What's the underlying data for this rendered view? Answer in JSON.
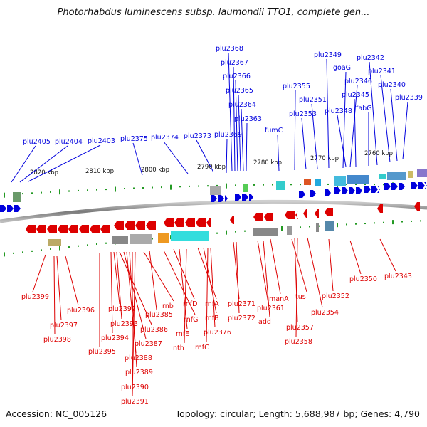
{
  "title": "Photorhabdus luminescens subsp. laumondii TTO1, complete gen...",
  "footer": {
    "accession": "Accession: NC_005126",
    "summary": "Topology: circular; Length: 5,688,987 bp; Genes: 4,790"
  },
  "scale_labels": [
    "2820 kbp",
    "2810 kbp",
    "2800 kbp",
    "2790 kbp",
    "2780 kbp",
    "2770 kbp",
    "2760 kbp"
  ],
  "top_genes": [
    "plu2405",
    "plu2404",
    "plu2403",
    "plu2375",
    "plu2374",
    "plu2373",
    "plu2369",
    "plu2368",
    "plu2367",
    "plu2366",
    "plu2365",
    "plu2364",
    "plu2363",
    "fumC",
    "plu2355",
    "plu2353",
    "plu2351",
    "plu2349",
    "goaG",
    "plu2346",
    "plu2348",
    "plu2345",
    "fabG",
    "plu2342",
    "plu2341",
    "plu2340",
    "plu2339"
  ],
  "bottom_genes": [
    "plu2399",
    "plu2397",
    "plu2398",
    "plu2396",
    "plu2395",
    "plu2394",
    "plu2392",
    "plu2393",
    "plu2386",
    "plu2387",
    "plu2388",
    "plu2389",
    "plu2390",
    "plu2391",
    "rnb",
    "plu2385",
    "rnfG",
    "rnfD",
    "rnfE",
    "nth",
    "rnfA",
    "rnfB",
    "rnfC",
    "plu2376",
    "plu2371",
    "plu2372",
    "plu2361",
    "add",
    "manA",
    "tus",
    "plu2354",
    "plu2357",
    "plu2358",
    "plu2352",
    "plu2350",
    "plu2343"
  ],
  "colors": {
    "forward": "#0000dd",
    "reverse": "#dd0000",
    "backbone": "#888888",
    "ticks": "#229922"
  }
}
